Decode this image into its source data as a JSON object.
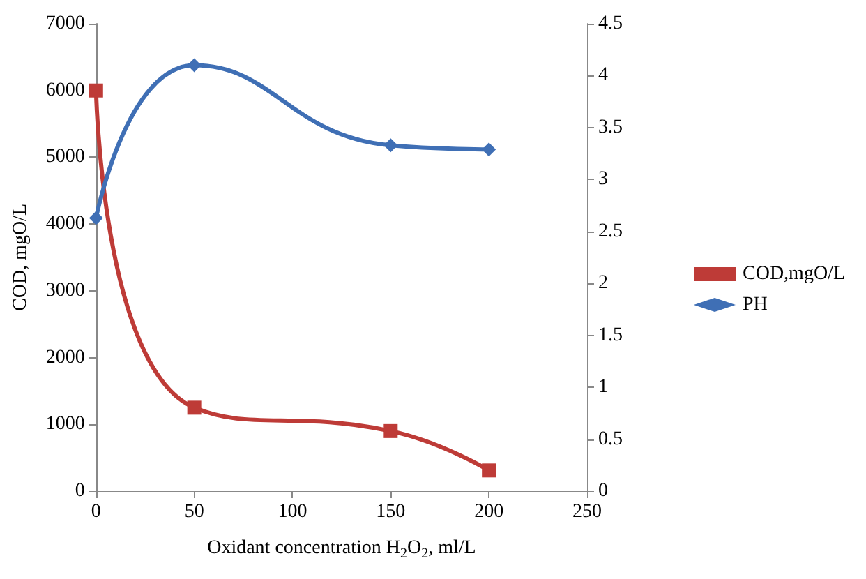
{
  "chart_data": {
    "type": "line",
    "xlabel": "Oxidant concentration H$_{2}$O$_{2}$, ml/L",
    "ylabel": "COD, mgO/L",
    "x": [
      0,
      50,
      150,
      200
    ],
    "xlim": [
      0,
      250
    ],
    "xticks": [
      0,
      50,
      100,
      150,
      200,
      250
    ],
    "ylim": [
      0,
      7000
    ],
    "yticks": [
      0,
      1000,
      2000,
      3000,
      4000,
      5000,
      6000,
      7000
    ],
    "y2lim": [
      0,
      4.5
    ],
    "y2ticks": [
      0,
      0.5,
      1,
      1.5,
      2,
      2.5,
      3,
      3.5,
      4,
      4.5
    ],
    "legend": "right",
    "series": [
      {
        "name": "COD,mgO/L",
        "color": "#be3b37",
        "marker": "square",
        "values": [
          6000,
          1250,
          900,
          310
        ]
      },
      {
        "name": "PH",
        "color": "#3f6fb5",
        "marker": "diamond",
        "axis": "y2",
        "values": [
          2.63,
          4.1,
          3.33,
          3.29
        ]
      }
    ]
  }
}
